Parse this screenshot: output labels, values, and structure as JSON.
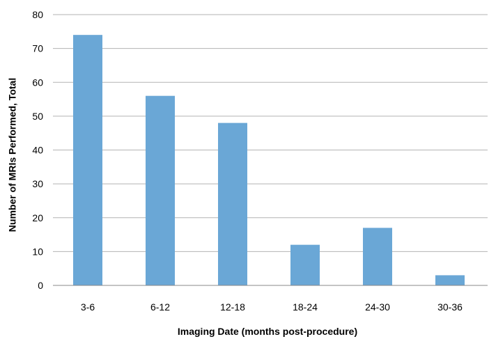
{
  "chart_data": {
    "type": "bar",
    "title": "",
    "xlabel": "Imaging Date (months post-procedure)",
    "ylabel": "Number of MRIs Performed, Total",
    "categories": [
      "3-6",
      "6-12",
      "12-18",
      "18-24",
      "24-30",
      "30-36"
    ],
    "values": [
      74,
      56,
      48,
      12,
      17,
      3
    ],
    "ylim": [
      0,
      80
    ],
    "yticks": [
      0,
      10,
      20,
      30,
      40,
      50,
      60,
      70,
      80
    ],
    "grid": true,
    "legend": "none",
    "bar_color": "#6aa7d6"
  }
}
